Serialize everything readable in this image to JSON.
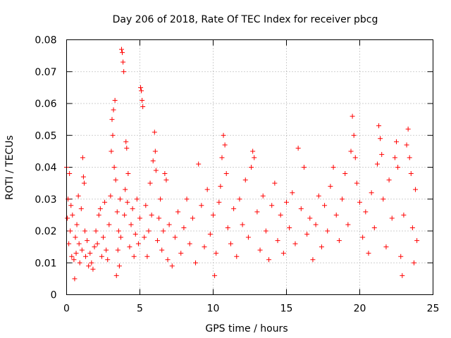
{
  "chart_data": {
    "type": "scatter",
    "title": "Day 206 of 2018, Rate Of TEC Index for receiver pbcg",
    "xlabel": "GPS time / hours",
    "ylabel": "ROTI / TECUs",
    "xlim": [
      0,
      25
    ],
    "ylim": [
      0,
      0.08
    ],
    "xticks": [
      0,
      5,
      10,
      15,
      20,
      25
    ],
    "xtick_labels": [
      "0",
      "5",
      "10",
      "15",
      "20",
      "25"
    ],
    "yticks": [
      0,
      0.01,
      0.02,
      0.03,
      0.04,
      0.05,
      0.06,
      0.07,
      0.08
    ],
    "ytick_labels": [
      "0",
      "0.01",
      "0.02",
      "0.03",
      "0.04",
      "0.05",
      "0.06",
      "0.07",
      "0.08"
    ],
    "grid": true,
    "marker": "plus",
    "color": "#ff0000",
    "series": [
      {
        "name": "ROTI",
        "points": [
          [
            0.0,
            0.04
          ],
          [
            0.05,
            0.024
          ],
          [
            0.1,
            0.03
          ],
          [
            0.15,
            0.016
          ],
          [
            0.2,
            0.038
          ],
          [
            0.25,
            0.02
          ],
          [
            0.3,
            0.028
          ],
          [
            0.35,
            0.012
          ],
          [
            0.4,
            0.025
          ],
          [
            0.5,
            0.011
          ],
          [
            0.55,
            0.005
          ],
          [
            0.6,
            0.018
          ],
          [
            0.65,
            0.013
          ],
          [
            0.7,
            0.022
          ],
          [
            0.8,
            0.031
          ],
          [
            0.85,
            0.016
          ],
          [
            0.9,
            0.01
          ],
          [
            1.0,
            0.027
          ],
          [
            1.05,
            0.014
          ],
          [
            1.1,
            0.043
          ],
          [
            1.15,
            0.037
          ],
          [
            1.2,
            0.035
          ],
          [
            1.25,
            0.02
          ],
          [
            1.3,
            0.012
          ],
          [
            1.4,
            0.017
          ],
          [
            1.5,
            0.009
          ],
          [
            1.6,
            0.013
          ],
          [
            1.7,
            0.01
          ],
          [
            1.8,
            0.008
          ],
          [
            1.9,
            0.015
          ],
          [
            2.0,
            0.02
          ],
          [
            2.1,
            0.016
          ],
          [
            2.2,
            0.025
          ],
          [
            2.3,
            0.027
          ],
          [
            2.4,
            0.012
          ],
          [
            2.5,
            0.018
          ],
          [
            2.6,
            0.029
          ],
          [
            2.7,
            0.014
          ],
          [
            2.8,
            0.011
          ],
          [
            2.9,
            0.022
          ],
          [
            3.0,
            0.031
          ],
          [
            3.05,
            0.045
          ],
          [
            3.1,
            0.055
          ],
          [
            3.15,
            0.05
          ],
          [
            3.2,
            0.058
          ],
          [
            3.25,
            0.04
          ],
          [
            3.3,
            0.061
          ],
          [
            3.35,
            0.036
          ],
          [
            3.4,
            0.006
          ],
          [
            3.45,
            0.026
          ],
          [
            3.5,
            0.014
          ],
          [
            3.55,
            0.02
          ],
          [
            3.6,
            0.009
          ],
          [
            3.65,
            0.03
          ],
          [
            3.7,
            0.018
          ],
          [
            3.75,
            0.077
          ],
          [
            3.8,
            0.076
          ],
          [
            3.85,
            0.073
          ],
          [
            3.9,
            0.07
          ],
          [
            3.95,
            0.025
          ],
          [
            4.0,
            0.033
          ],
          [
            4.05,
            0.048
          ],
          [
            4.1,
            0.046
          ],
          [
            4.15,
            0.029
          ],
          [
            4.2,
            0.038
          ],
          [
            4.3,
            0.015
          ],
          [
            4.4,
            0.022
          ],
          [
            4.5,
            0.027
          ],
          [
            4.6,
            0.012
          ],
          [
            4.7,
            0.019
          ],
          [
            4.8,
            0.03
          ],
          [
            4.9,
            0.016
          ],
          [
            5.0,
            0.024
          ],
          [
            5.05,
            0.065
          ],
          [
            5.1,
            0.064
          ],
          [
            5.15,
            0.061
          ],
          [
            5.2,
            0.059
          ],
          [
            5.3,
            0.018
          ],
          [
            5.4,
            0.028
          ],
          [
            5.5,
            0.012
          ],
          [
            5.6,
            0.02
          ],
          [
            5.7,
            0.035
          ],
          [
            5.8,
            0.025
          ],
          [
            5.9,
            0.042
          ],
          [
            6.0,
            0.051
          ],
          [
            6.05,
            0.045
          ],
          [
            6.1,
            0.039
          ],
          [
            6.2,
            0.017
          ],
          [
            6.3,
            0.024
          ],
          [
            6.4,
            0.03
          ],
          [
            6.5,
            0.014
          ],
          [
            6.6,
            0.02
          ],
          [
            6.7,
            0.038
          ],
          [
            6.8,
            0.036
          ],
          [
            6.9,
            0.011
          ],
          [
            7.0,
            0.022
          ],
          [
            7.2,
            0.009
          ],
          [
            7.4,
            0.018
          ],
          [
            7.6,
            0.026
          ],
          [
            7.8,
            0.013
          ],
          [
            8.0,
            0.021
          ],
          [
            8.2,
            0.03
          ],
          [
            8.4,
            0.016
          ],
          [
            8.6,
            0.024
          ],
          [
            8.8,
            0.01
          ],
          [
            9.0,
            0.041
          ],
          [
            9.2,
            0.028
          ],
          [
            9.4,
            0.015
          ],
          [
            9.6,
            0.033
          ],
          [
            9.8,
            0.019
          ],
          [
            10.0,
            0.025
          ],
          [
            10.1,
            0.006
          ],
          [
            10.2,
            0.013
          ],
          [
            10.4,
            0.029
          ],
          [
            10.5,
            0.034
          ],
          [
            10.6,
            0.043
          ],
          [
            10.7,
            0.05
          ],
          [
            10.8,
            0.047
          ],
          [
            10.9,
            0.038
          ],
          [
            11.0,
            0.021
          ],
          [
            11.2,
            0.016
          ],
          [
            11.4,
            0.027
          ],
          [
            11.6,
            0.012
          ],
          [
            11.8,
            0.03
          ],
          [
            12.0,
            0.022
          ],
          [
            12.2,
            0.036
          ],
          [
            12.4,
            0.018
          ],
          [
            12.6,
            0.04
          ],
          [
            12.7,
            0.045
          ],
          [
            12.8,
            0.043
          ],
          [
            13.0,
            0.026
          ],
          [
            13.2,
            0.014
          ],
          [
            13.4,
            0.031
          ],
          [
            13.6,
            0.02
          ],
          [
            13.8,
            0.011
          ],
          [
            14.0,
            0.028
          ],
          [
            14.2,
            0.035
          ],
          [
            14.4,
            0.017
          ],
          [
            14.6,
            0.025
          ],
          [
            14.8,
            0.013
          ],
          [
            15.0,
            0.029
          ],
          [
            15.2,
            0.021
          ],
          [
            15.4,
            0.032
          ],
          [
            15.6,
            0.016
          ],
          [
            15.8,
            0.046
          ],
          [
            16.0,
            0.027
          ],
          [
            16.2,
            0.04
          ],
          [
            16.4,
            0.019
          ],
          [
            16.6,
            0.024
          ],
          [
            16.8,
            0.011
          ],
          [
            17.0,
            0.022
          ],
          [
            17.2,
            0.031
          ],
          [
            17.4,
            0.015
          ],
          [
            17.6,
            0.028
          ],
          [
            17.8,
            0.02
          ],
          [
            18.0,
            0.034
          ],
          [
            18.2,
            0.04
          ],
          [
            18.4,
            0.025
          ],
          [
            18.6,
            0.017
          ],
          [
            18.8,
            0.03
          ],
          [
            19.0,
            0.038
          ],
          [
            19.2,
            0.022
          ],
          [
            19.4,
            0.045
          ],
          [
            19.5,
            0.056
          ],
          [
            19.6,
            0.05
          ],
          [
            19.7,
            0.043
          ],
          [
            19.8,
            0.035
          ],
          [
            20.0,
            0.029
          ],
          [
            20.2,
            0.018
          ],
          [
            20.4,
            0.026
          ],
          [
            20.6,
            0.013
          ],
          [
            20.8,
            0.032
          ],
          [
            21.0,
            0.021
          ],
          [
            21.2,
            0.041
          ],
          [
            21.3,
            0.053
          ],
          [
            21.4,
            0.049
          ],
          [
            21.5,
            0.044
          ],
          [
            21.6,
            0.03
          ],
          [
            21.8,
            0.015
          ],
          [
            22.0,
            0.036
          ],
          [
            22.2,
            0.024
          ],
          [
            22.4,
            0.043
          ],
          [
            22.5,
            0.048
          ],
          [
            22.6,
            0.04
          ],
          [
            22.8,
            0.012
          ],
          [
            22.9,
            0.006
          ],
          [
            23.0,
            0.025
          ],
          [
            23.2,
            0.047
          ],
          [
            23.3,
            0.052
          ],
          [
            23.4,
            0.043
          ],
          [
            23.5,
            0.038
          ],
          [
            23.6,
            0.021
          ],
          [
            23.7,
            0.01
          ],
          [
            23.8,
            0.033
          ],
          [
            23.9,
            0.017
          ]
        ]
      }
    ]
  }
}
